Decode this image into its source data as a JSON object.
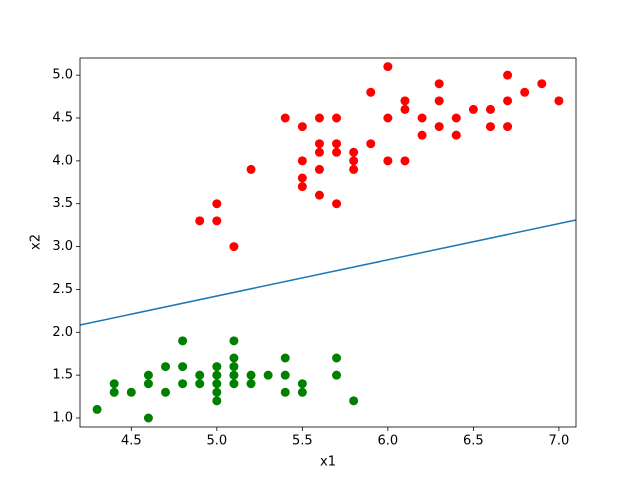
{
  "chart_data": {
    "type": "scatter",
    "x_label": "x1",
    "y_label": "x2",
    "xlim": [
      4.2,
      7.1
    ],
    "ylim": [
      0.895,
      5.2
    ],
    "xticks": [
      4.5,
      {
        "value": 5,
        "label": "5.0"
      },
      5.5,
      {
        "value": 6,
        "label": "6.0"
      },
      6.5,
      {
        "value": 7,
        "label": "7.0"
      }
    ],
    "yticks": [
      {
        "value": 1,
        "label": "1.0"
      },
      1.5,
      {
        "value": 2,
        "label": "2.0"
      },
      2.5,
      {
        "value": 3,
        "label": "3.0"
      },
      3.5,
      {
        "value": 4,
        "label": "4.0"
      },
      4.5,
      {
        "value": 5,
        "label": "5.0"
      }
    ],
    "series": [
      {
        "type": "scatter",
        "color": "#008000",
        "x": [
          4.3,
          4.4,
          4.4,
          4.5,
          4.6,
          4.6,
          4.6,
          4.7,
          4.7,
          4.8,
          4.8,
          4.8,
          4.9,
          4.9,
          5.0,
          5.0,
          5.0,
          5.0,
          5.0,
          5.1,
          5.1,
          5.1,
          5.1,
          5.1,
          5.2,
          5.2,
          5.3,
          5.4,
          5.4,
          5.4,
          5.5,
          5.5,
          5.7,
          5.7,
          5.8
        ],
        "values": [
          1.1,
          1.4,
          1.3,
          1.3,
          1.0,
          1.4,
          1.5,
          1.3,
          1.6,
          1.9,
          1.6,
          1.4,
          1.5,
          1.4,
          1.6,
          1.5,
          1.4,
          1.3,
          1.2,
          1.9,
          1.7,
          1.6,
          1.5,
          1.4,
          1.5,
          1.4,
          1.5,
          1.7,
          1.5,
          1.3,
          1.4,
          1.3,
          1.7,
          1.5,
          1.2
        ]
      },
      {
        "type": "scatter",
        "color": "#ff0000",
        "x": [
          4.9,
          5.0,
          5.0,
          5.1,
          5.2,
          5.4,
          5.5,
          5.5,
          5.5,
          5.5,
          5.6,
          5.6,
          5.6,
          5.6,
          5.6,
          5.7,
          5.7,
          5.7,
          5.7,
          5.8,
          5.8,
          5.8,
          5.9,
          5.9,
          6.0,
          6.0,
          6.0,
          6.1,
          6.1,
          6.1,
          6.2,
          6.2,
          6.3,
          6.3,
          6.3,
          6.4,
          6.4,
          6.5,
          6.6,
          6.6,
          6.7,
          6.7,
          6.7,
          6.8,
          6.9,
          7.0
        ],
        "values": [
          3.3,
          3.5,
          3.3,
          3.0,
          3.9,
          4.5,
          4.4,
          4.0,
          3.8,
          3.7,
          4.5,
          4.2,
          4.1,
          3.9,
          3.6,
          4.5,
          4.2,
          4.1,
          3.5,
          4.1,
          4.0,
          3.9,
          4.8,
          4.2,
          5.1,
          4.5,
          4.0,
          4.7,
          4.6,
          4.0,
          4.5,
          4.3,
          4.9,
          4.7,
          4.4,
          4.5,
          4.3,
          4.6,
          4.6,
          4.4,
          5.0,
          4.7,
          4.4,
          4.8,
          4.9,
          4.7
        ]
      },
      {
        "type": "line",
        "color": "#1f77b4",
        "x": [
          4.2,
          7.1
        ],
        "values": [
          2.085,
          3.31
        ]
      }
    ]
  }
}
